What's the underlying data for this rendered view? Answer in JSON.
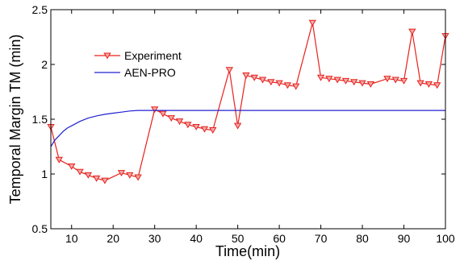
{
  "chart_data": {
    "type": "line",
    "title": "",
    "xlabel": "Time(min)",
    "ylabel": "Temporal Margin TM (min)",
    "xlim": [
      5,
      100
    ],
    "ylim": [
      0.5,
      2.5
    ],
    "xticks": [
      10,
      20,
      30,
      40,
      50,
      60,
      70,
      80,
      90,
      100
    ],
    "yticks": [
      0.5,
      1,
      1.5,
      2,
      2.5
    ],
    "xtick_labels": [
      "10",
      "20",
      "30",
      "40",
      "50",
      "60",
      "70",
      "80",
      "90",
      "100"
    ],
    "ytick_labels": [
      "0.5",
      "1",
      "1.5",
      "2",
      "2.5"
    ],
    "grid": false,
    "legend_position": "upper-left",
    "series": [
      {
        "name": "Experiment",
        "color": "#e8201c",
        "marker": "downward-triangle",
        "x": [
          5,
          7,
          10,
          12,
          14,
          16,
          18,
          22,
          24,
          26,
          30,
          32,
          34,
          36,
          38,
          40,
          42,
          44,
          48,
          50,
          52,
          54,
          56,
          58,
          60,
          62,
          64,
          68,
          70,
          72,
          74,
          76,
          78,
          80,
          82,
          86,
          88,
          90,
          92,
          94,
          96,
          98,
          100
        ],
        "y": [
          1.43,
          1.13,
          1.07,
          1.02,
          0.99,
          0.96,
          0.94,
          1.01,
          0.99,
          0.97,
          1.59,
          1.55,
          1.51,
          1.48,
          1.45,
          1.43,
          1.41,
          1.4,
          1.95,
          1.44,
          1.9,
          1.88,
          1.86,
          1.84,
          1.83,
          1.81,
          1.8,
          2.38,
          1.88,
          1.87,
          1.86,
          1.85,
          1.84,
          1.83,
          1.82,
          1.87,
          1.86,
          1.85,
          2.3,
          1.83,
          1.82,
          1.81,
          2.26
        ]
      },
      {
        "name": "AEN-PRO",
        "color": "#2020d0",
        "marker": "none",
        "x": [
          5,
          6,
          7,
          8,
          9,
          10,
          12,
          14,
          16,
          18,
          20,
          22,
          24,
          26,
          28,
          30,
          35,
          40,
          50,
          60,
          70,
          80,
          90,
          100
        ],
        "y": [
          1.25,
          1.31,
          1.35,
          1.39,
          1.42,
          1.44,
          1.48,
          1.51,
          1.53,
          1.545,
          1.555,
          1.565,
          1.575,
          1.58,
          1.58,
          1.58,
          1.58,
          1.58,
          1.58,
          1.58,
          1.58,
          1.58,
          1.58,
          1.58
        ]
      }
    ]
  }
}
